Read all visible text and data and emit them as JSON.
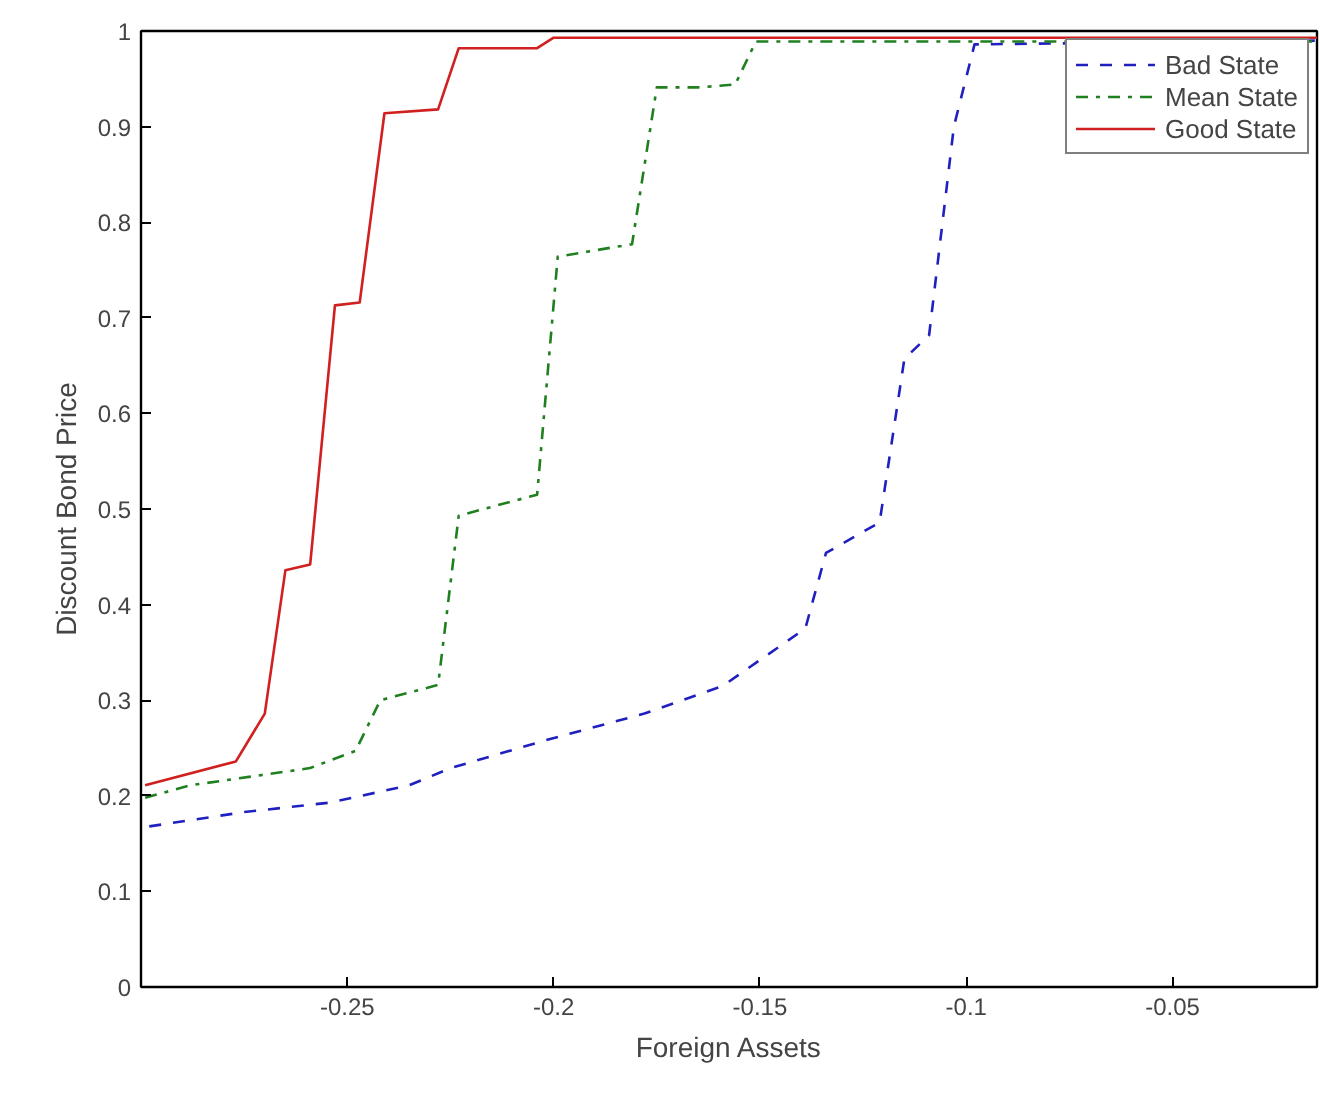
{
  "chart_data": {
    "type": "line",
    "xlabel": "Foreign Assets",
    "ylabel": "Discount Bond Price",
    "xlim": [
      -0.3,
      -0.015
    ],
    "ylim": [
      0,
      1
    ],
    "xticks": [
      -0.25,
      -0.2,
      -0.15,
      -0.1,
      -0.05
    ],
    "yticks": [
      0,
      0.1,
      0.2,
      0.3,
      0.4,
      0.5,
      0.6,
      0.7,
      0.8,
      0.9,
      1
    ],
    "legend": "top right",
    "series": [
      {
        "name": "Bad State",
        "color": "#2020c0",
        "line_style": "dashed",
        "x": [
          -0.298,
          -0.275,
          -0.254,
          -0.235,
          -0.225,
          -0.202,
          -0.178,
          -0.159,
          -0.139,
          -0.134,
          -0.121,
          -0.115,
          -0.109,
          -0.103,
          -0.098,
          -0.015
        ],
        "values": [
          0.168,
          0.183,
          0.193,
          0.211,
          0.229,
          0.258,
          0.286,
          0.315,
          0.375,
          0.454,
          0.486,
          0.657,
          0.682,
          0.9,
          0.986,
          0.99
        ]
      },
      {
        "name": "Mean State",
        "color": "#208020",
        "line_style": "dashdot",
        "x": [
          -0.299,
          -0.288,
          -0.259,
          -0.248,
          -0.242,
          -0.228,
          -0.223,
          -0.204,
          -0.199,
          -0.181,
          -0.175,
          -0.165,
          -0.156,
          -0.151,
          -0.015
        ],
        "values": [
          0.198,
          0.211,
          0.229,
          0.247,
          0.3,
          0.316,
          0.493,
          0.515,
          0.764,
          0.777,
          0.941,
          0.941,
          0.944,
          0.989,
          0.989
        ]
      },
      {
        "name": "Good State",
        "color": "#d02020",
        "line_style": "solid",
        "x": [
          -0.299,
          -0.277,
          -0.27,
          -0.265,
          -0.259,
          -0.253,
          -0.247,
          -0.241,
          -0.228,
          -0.223,
          -0.204,
          -0.2,
          -0.015
        ],
        "values": [
          0.211,
          0.236,
          0.286,
          0.436,
          0.442,
          0.713,
          0.716,
          0.914,
          0.918,
          0.982,
          0.982,
          0.993,
          0.993
        ]
      }
    ]
  }
}
